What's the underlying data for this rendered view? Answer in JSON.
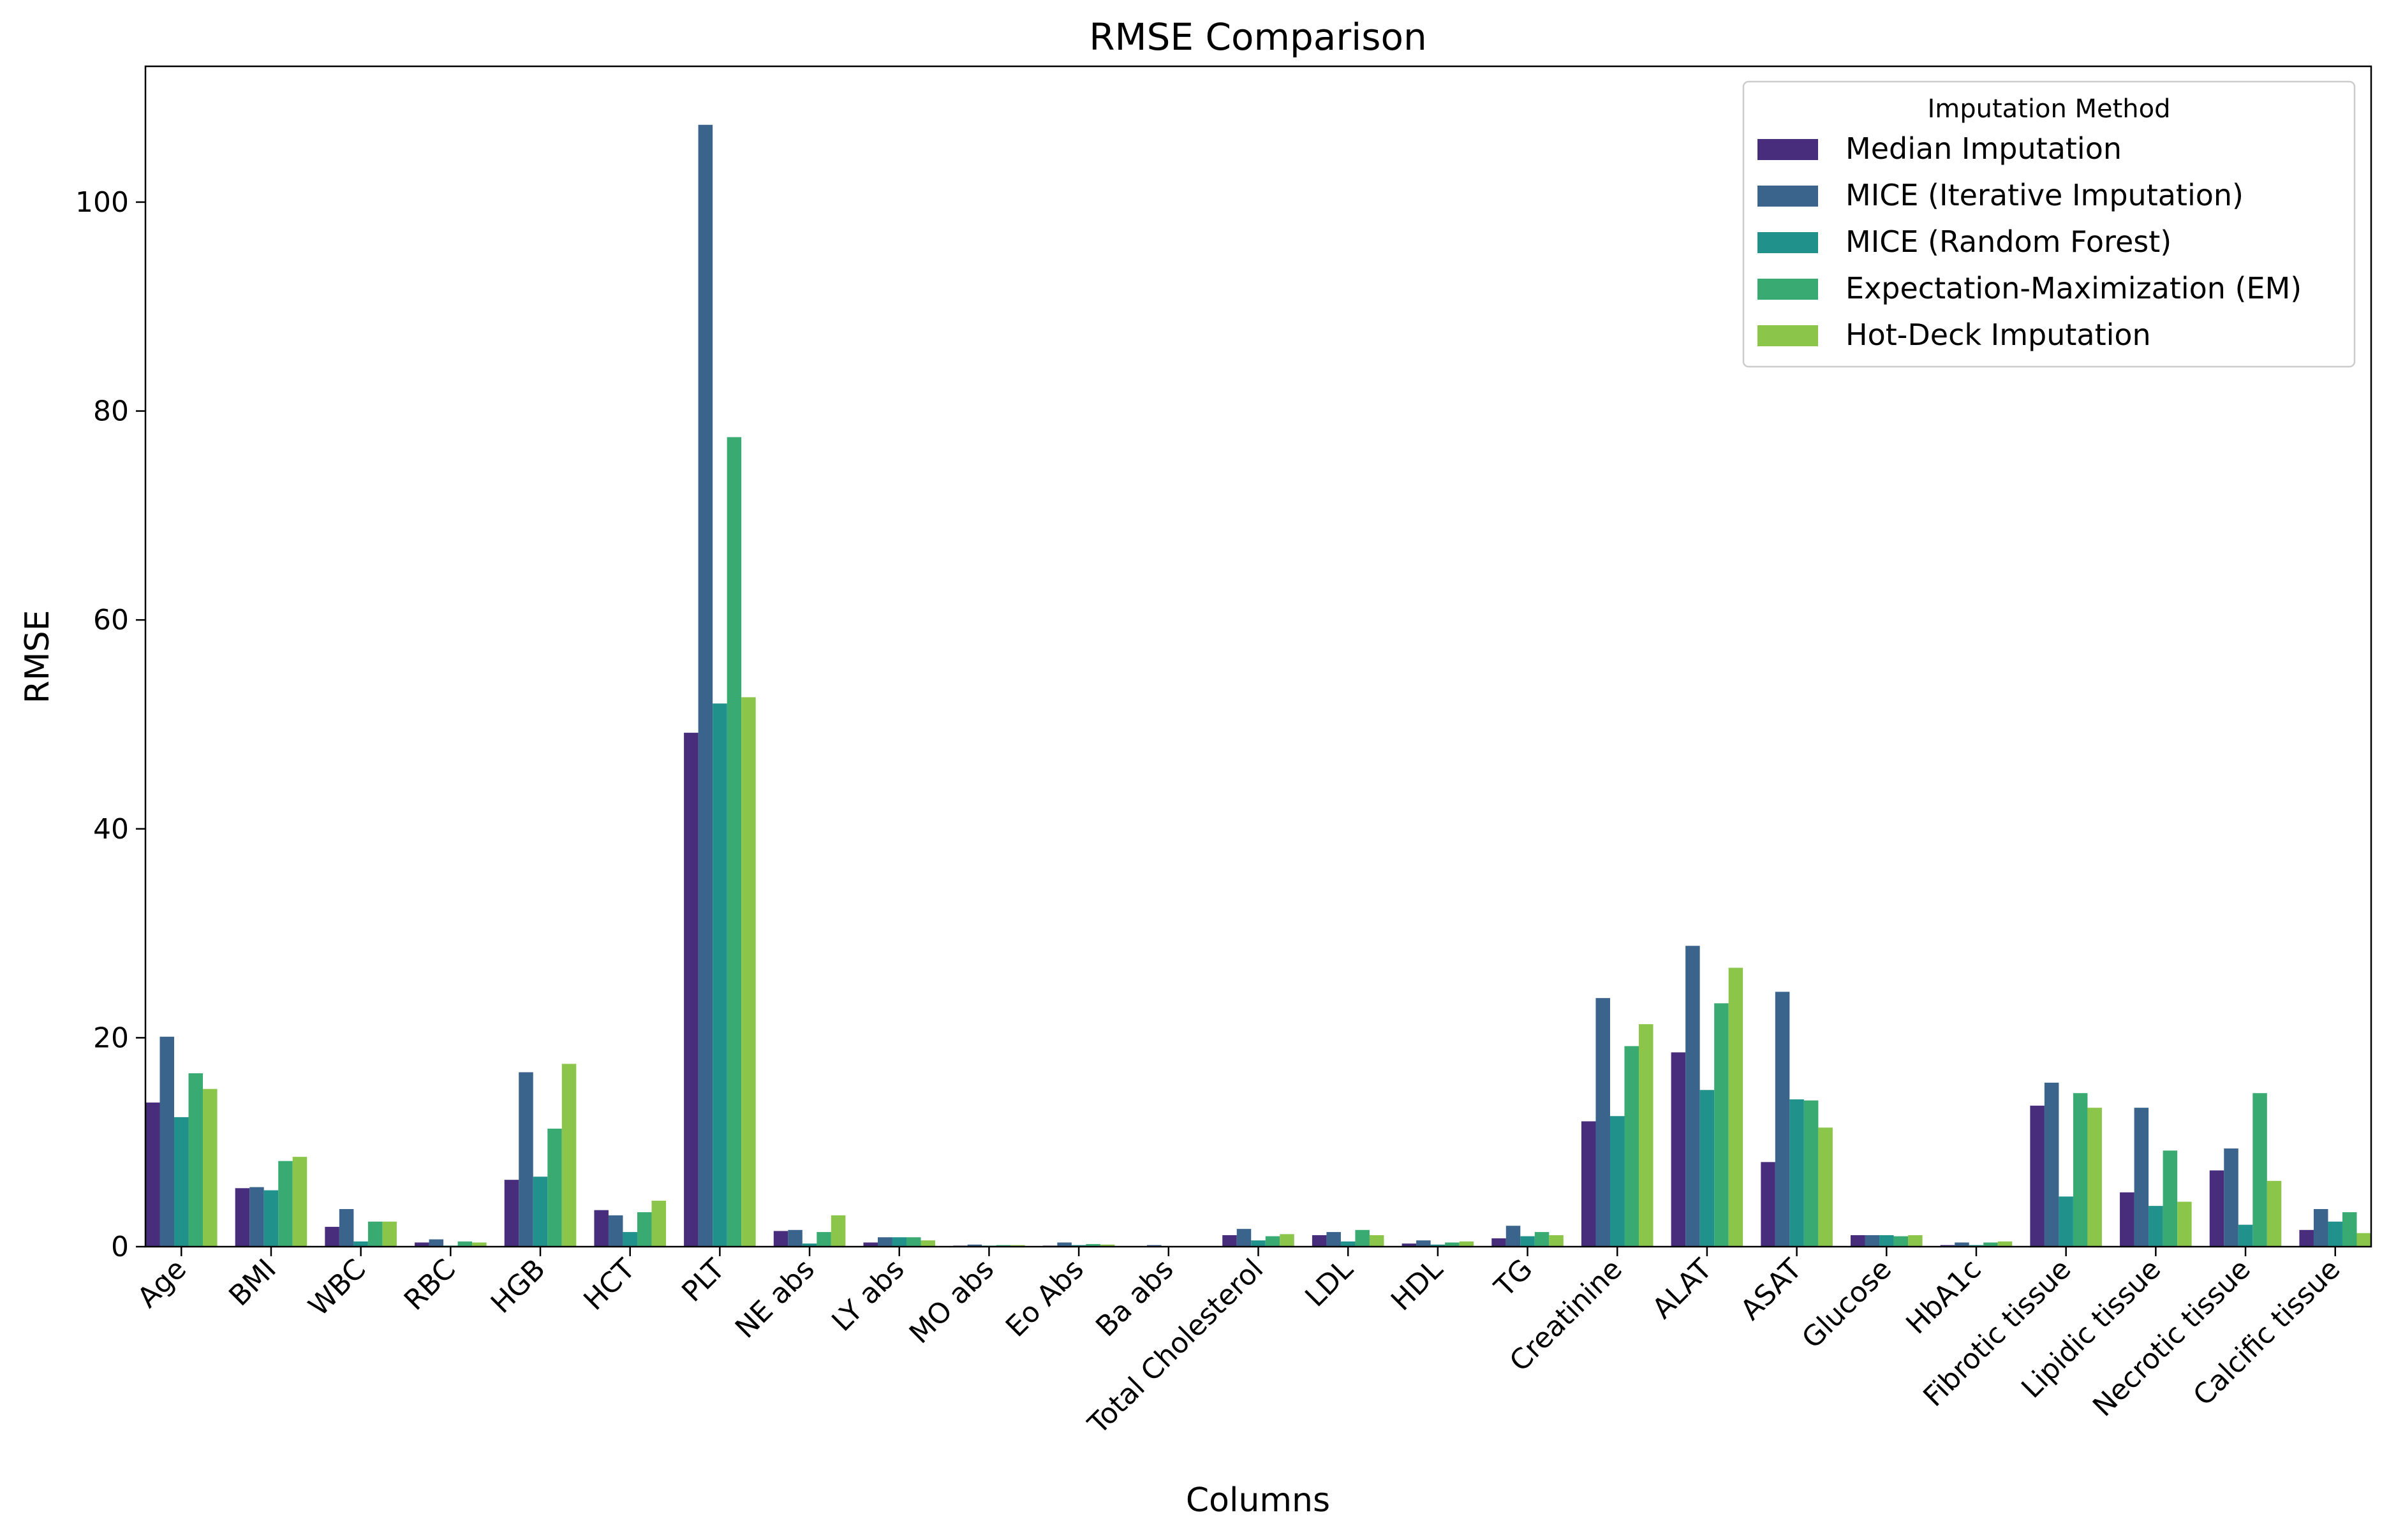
{
  "chart_data": {
    "type": "bar",
    "title": "RMSE Comparison",
    "xlabel": "Columns",
    "ylabel": "RMSE",
    "ylim": [
      0,
      113
    ],
    "yticks": [
      0,
      20,
      40,
      60,
      80,
      100
    ],
    "grid": false,
    "legend": {
      "title": "Imputation Method",
      "placement": "top-right"
    },
    "categories": [
      "Age",
      "BMI",
      "WBC",
      "RBC",
      "HGB",
      "HCT",
      "PLT",
      "NE abs",
      "LY abs",
      "MO abs",
      "Eo Abs",
      "Ba abs",
      "Total Cholesterol",
      "LDL",
      "HDL",
      "TG",
      "Creatinine",
      "ALAT",
      "ASAT",
      "Glucose",
      "HbA1c",
      "Fibrotic tissue",
      "Lipidic tissue",
      "Necrotic tissue",
      "Calcific tissue"
    ],
    "series": [
      {
        "name": "Median Imputation",
        "color": "#472d7b",
        "values": [
          13.8,
          5.6,
          1.9,
          0.4,
          6.4,
          3.5,
          49.2,
          1.5,
          0.4,
          0.1,
          0.1,
          0.05,
          1.1,
          1.1,
          0.3,
          0.8,
          12.0,
          18.6,
          8.1,
          1.1,
          0.15,
          13.5,
          5.2,
          7.3,
          1.6
        ]
      },
      {
        "name": "MICE (Iterative Imputation)",
        "color": "#3b648d",
        "values": [
          20.1,
          5.7,
          3.6,
          0.7,
          16.7,
          3.0,
          107.4,
          1.6,
          0.9,
          0.2,
          0.4,
          0.15,
          1.7,
          1.4,
          0.6,
          2.0,
          23.8,
          28.8,
          24.4,
          1.1,
          0.4,
          15.7,
          13.3,
          9.4,
          3.6
        ]
      },
      {
        "name": "MICE (Random Forest)",
        "color": "#21918c",
        "values": [
          12.4,
          5.4,
          0.5,
          0.1,
          6.7,
          1.4,
          52.0,
          0.3,
          0.9,
          0.1,
          0.15,
          0.05,
          0.6,
          0.5,
          0.2,
          1.0,
          12.5,
          15.0,
          14.1,
          1.1,
          0.15,
          4.8,
          3.9,
          2.1,
          2.4
        ]
      },
      {
        "name": "Expectation-Maximization (EM)",
        "color": "#3aaa73",
        "values": [
          16.6,
          8.2,
          2.4,
          0.5,
          11.3,
          3.3,
          77.5,
          1.4,
          0.9,
          0.15,
          0.25,
          0.05,
          1.0,
          1.6,
          0.4,
          1.4,
          19.2,
          23.3,
          14.0,
          1.0,
          0.4,
          14.7,
          9.2,
          14.7,
          3.3
        ]
      },
      {
        "name": "Hot-Deck Imputation",
        "color": "#8bc64b",
        "values": [
          15.1,
          8.6,
          2.4,
          0.4,
          17.5,
          4.4,
          52.6,
          3.0,
          0.6,
          0.15,
          0.2,
          0.05,
          1.2,
          1.1,
          0.5,
          1.1,
          21.3,
          26.7,
          11.4,
          1.1,
          0.5,
          13.3,
          4.3,
          6.3,
          1.3
        ]
      }
    ]
  }
}
